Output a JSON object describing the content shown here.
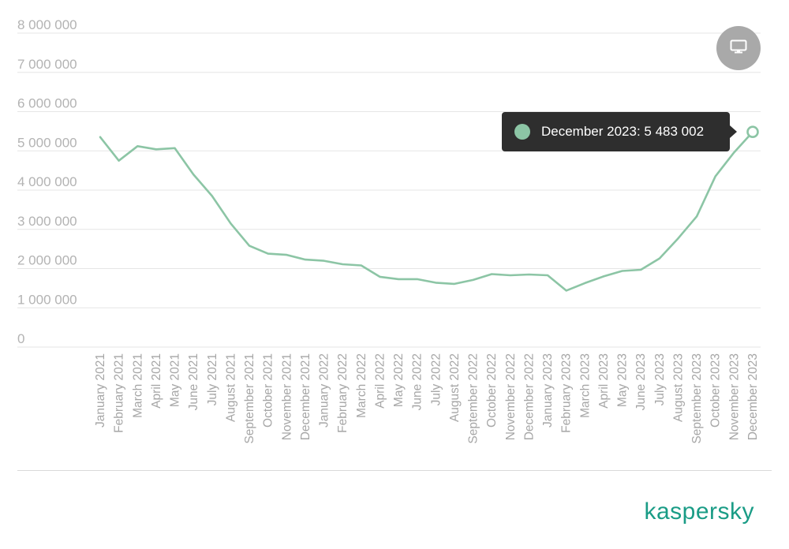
{
  "chart_data": {
    "type": "line",
    "title": "",
    "xlabel": "",
    "ylabel": "",
    "ylim": [
      0,
      8000000
    ],
    "yticks": [
      0,
      1000000,
      2000000,
      3000000,
      4000000,
      5000000,
      6000000,
      7000000,
      8000000
    ],
    "ytick_labels": [
      "0",
      "1 000 000",
      "2 000 000",
      "3 000 000",
      "4 000 000",
      "5 000 000",
      "6 000 000",
      "7 000 000",
      "8 000 000"
    ],
    "grid": true,
    "legend": "none",
    "categories": [
      "January 2021",
      "February 2021",
      "March 2021",
      "April 2021",
      "May 2021",
      "June 2021",
      "July 2021",
      "August 2021",
      "September 2021",
      "October 2021",
      "November 2021",
      "December 2021",
      "January 2022",
      "February 2022",
      "March 2022",
      "April 2022",
      "May 2022",
      "June 2022",
      "July 2022",
      "August 2022",
      "September 2022",
      "October 2022",
      "November 2022",
      "December 2022",
      "January 2023",
      "February 2023",
      "March 2023",
      "April 2023",
      "May 2023",
      "June 2023",
      "July 2023",
      "August 2023",
      "September 2023",
      "October 2023",
      "November 2023",
      "December 2023"
    ],
    "series": [
      {
        "name": "",
        "color": "#8cc5a5",
        "values": [
          5350000,
          4750000,
          5120000,
          5040000,
          5070000,
          4400000,
          3850000,
          3150000,
          2580000,
          2380000,
          2350000,
          2230000,
          2200000,
          2110000,
          2080000,
          1790000,
          1730000,
          1730000,
          1640000,
          1610000,
          1710000,
          1860000,
          1830000,
          1850000,
          1830000,
          1440000,
          1630000,
          1800000,
          1940000,
          1970000,
          2260000,
          2770000,
          3330000,
          4350000,
          4960000,
          5483002
        ]
      }
    ]
  },
  "tooltip": {
    "text": "December 2023: 5 483 002",
    "color": "#8cc5a5"
  },
  "controls": {
    "view_toggle_icon": "monitor-icon"
  },
  "brand": {
    "name": "kaspersky",
    "color": "#1a9c86"
  }
}
